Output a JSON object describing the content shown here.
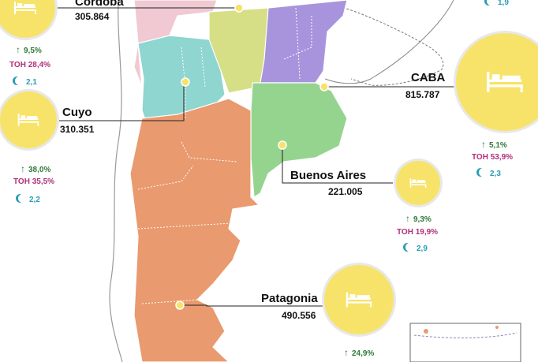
{
  "colors": {
    "cordoba": "#d6df86",
    "noa": "#f0c9d3",
    "nea": "#a894dc",
    "cuyo": "#8fd5d0",
    "buenos_aires": "#95d48f",
    "patagonia": "#e99a6f",
    "bubble": "#f8e36a",
    "bubble_ring": "#e8e8e8",
    "stat_up": "#2f7a3a",
    "stat_toh": "#b0307a",
    "stat_moon": "#2a9cb6"
  },
  "regions": {
    "cordoba": {
      "name": "Córdoba",
      "value": "305.864",
      "up": "9,5%",
      "toh_label": "TOH",
      "toh": "28,4%",
      "stay": "2,1"
    },
    "cuyo": {
      "name": "Cuyo",
      "value": "310.351",
      "up": "38,0%",
      "toh_label": "TOH",
      "toh": "35,5%",
      "stay": "2,2"
    },
    "caba": {
      "name": "CABA",
      "value": "815.787",
      "up": "5,1%",
      "toh_label": "TOH",
      "toh": "53,9%",
      "stay": "2,3"
    },
    "buenos_aires": {
      "name": "Buenos Aires",
      "value": "221.005",
      "up": "9,3%",
      "toh_label": "TOH",
      "toh": "19,9%",
      "stay": "2,9"
    },
    "patagonia": {
      "name": "Patagonia",
      "value": "490.556",
      "up": "24,9%"
    },
    "nea_partial": {
      "stay": "1,9"
    }
  },
  "icons": {
    "bed": "bed-icon",
    "arrow": "arrow-up-icon",
    "moon": "moon-icon"
  }
}
